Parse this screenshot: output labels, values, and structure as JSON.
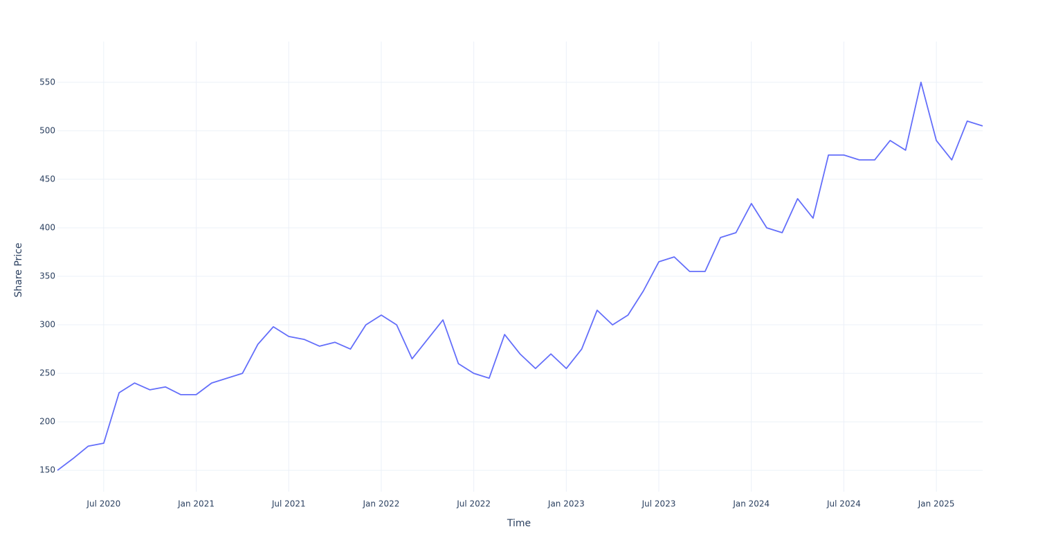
{
  "chart_data": {
    "type": "line",
    "x_label": "Time",
    "y_label": "Share Price",
    "x": [
      "2020-04",
      "2020-05",
      "2020-06",
      "2020-07",
      "2020-08",
      "2020-09",
      "2020-10",
      "2020-11",
      "2020-12",
      "2021-01",
      "2021-02",
      "2021-03",
      "2021-04",
      "2021-05",
      "2021-06",
      "2021-07",
      "2021-08",
      "2021-09",
      "2021-10",
      "2021-11",
      "2021-12",
      "2022-01",
      "2022-02",
      "2022-03",
      "2022-04",
      "2022-05",
      "2022-06",
      "2022-07",
      "2022-08",
      "2022-09",
      "2022-10",
      "2022-11",
      "2022-12",
      "2023-01",
      "2023-02",
      "2023-03",
      "2023-04",
      "2023-05",
      "2023-06",
      "2023-07",
      "2023-08",
      "2023-09",
      "2023-10",
      "2023-11",
      "2023-12",
      "2024-01",
      "2024-02",
      "2024-03",
      "2024-04",
      "2024-05",
      "2024-06",
      "2024-07",
      "2024-08",
      "2024-09",
      "2024-10",
      "2024-11",
      "2024-12",
      "2025-01",
      "2025-02",
      "2025-03",
      "2025-04"
    ],
    "series": [
      {
        "name": "Share Price",
        "color": "#636efa",
        "values": [
          150,
          162,
          175,
          178,
          230,
          240,
          233,
          236,
          228,
          228,
          240,
          245,
          250,
          280,
          298,
          288,
          285,
          278,
          282,
          275,
          300,
          310,
          300,
          265,
          285,
          305,
          260,
          250,
          245,
          290,
          270,
          255,
          270,
          255,
          275,
          315,
          300,
          310,
          335,
          365,
          370,
          355,
          355,
          390,
          395,
          425,
          400,
          395,
          430,
          410,
          475,
          475,
          470,
          470,
          490,
          480,
          550,
          490,
          470,
          510,
          505
        ]
      }
    ],
    "xlim": [
      "2020-04",
      "2025-04"
    ],
    "xticks": [
      {
        "value": "2020-07",
        "label": "Jul 2020"
      },
      {
        "value": "2021-01",
        "label": "Jan 2021"
      },
      {
        "value": "2021-07",
        "label": "Jul 2021"
      },
      {
        "value": "2022-01",
        "label": "Jan 2022"
      },
      {
        "value": "2022-07",
        "label": "Jul 2022"
      },
      {
        "value": "2023-01",
        "label": "Jan 2023"
      },
      {
        "value": "2023-07",
        "label": "Jul 2023"
      },
      {
        "value": "2024-01",
        "label": "Jan 2024"
      },
      {
        "value": "2024-07",
        "label": "Jul 2024"
      },
      {
        "value": "2025-01",
        "label": "Jan 2025"
      }
    ],
    "ylim": [
      128,
      592
    ],
    "yticks": [
      150,
      200,
      250,
      300,
      350,
      400,
      450,
      500,
      550
    ],
    "grid": true
  }
}
